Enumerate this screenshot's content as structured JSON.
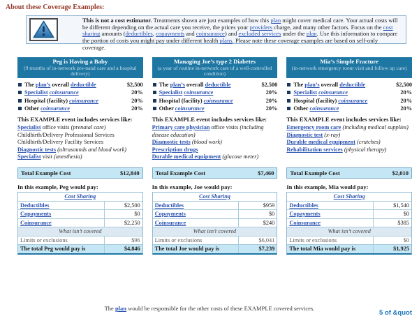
{
  "page_title": "About these Coverage Examples:",
  "colors": {
    "header_blue": "#1E76A3",
    "light_blue_fill": "#C5E6F4",
    "link_blue": "#2A52B0",
    "heading_red": "#97392A"
  },
  "icons": {
    "warning": "warning-triangle-exclamation"
  },
  "disclaimer": {
    "segments": [
      {
        "text": "This is not a cost estimator. ",
        "bold": true
      },
      {
        "text": "Treatments shown are just examples of how this "
      },
      {
        "text": "plan",
        "link": true
      },
      {
        "text": " might cover medical care. Your actual costs will be different depending on the actual care you receive, the prices your "
      },
      {
        "text": "providers",
        "link": true
      },
      {
        "text": " charge, and many other factors. Focus on the "
      },
      {
        "text": "cost sharing",
        "link": true
      },
      {
        "text": " amounts ("
      },
      {
        "text": "deductibles",
        "link": true
      },
      {
        "text": ", "
      },
      {
        "text": "copayments",
        "link": true
      },
      {
        "text": " and "
      },
      {
        "text": "coinsurance",
        "link": true
      },
      {
        "text": ") and "
      },
      {
        "text": "excluded services",
        "link": true
      },
      {
        "text": " under the "
      },
      {
        "text": "plan",
        "link": true
      },
      {
        "text": ". Use this information to compare the portion of costs you might pay under different health "
      },
      {
        "text": "plans",
        "link": true
      },
      {
        "text": ". Please note these coverage examples are based on self-only coverage."
      }
    ]
  },
  "examples": [
    {
      "title": "Peg is Having a Baby",
      "subtitle": "(9 months of in-network pre-natal care and a hospital delivery)",
      "plan_details": [
        {
          "segments": [
            {
              "text": "The "
            },
            {
              "text": "plan’s",
              "link": true
            },
            {
              "text": " overall "
            },
            {
              "text": "deductible",
              "link": true
            }
          ],
          "value": "$2,500"
        },
        {
          "segments": [
            {
              "text": "Specialist",
              "link": true
            },
            {
              "text": " "
            },
            {
              "text": "coinsurance",
              "link": true,
              "italic": true
            }
          ],
          "value": "20%"
        },
        {
          "segments": [
            {
              "text": "Hospital (facility) "
            },
            {
              "text": "coinsurance",
              "link": true,
              "italic": true
            }
          ],
          "value": "20%"
        },
        {
          "segments": [
            {
              "text": "Other "
            },
            {
              "text": "coinsurance",
              "link": true,
              "italic": true
            }
          ],
          "value": "20%"
        }
      ],
      "includes_heading": "This EXAMPLE event includes services like:",
      "services": [
        [
          {
            "text": "Specialist",
            "link": true,
            "bold": true
          },
          {
            "text": " office visits "
          },
          {
            "text": "(prenatal care)",
            "italic": true
          }
        ],
        [
          {
            "text": "Childbirth/Delivery Professional Services"
          }
        ],
        [
          {
            "text": "Childbirth/Delivery Facility Services"
          }
        ],
        [
          {
            "text": "Diagnostic tests",
            "link": true,
            "bold": true
          },
          {
            "text": " "
          },
          {
            "text": "(ultrasounds and blood work)",
            "italic": true
          }
        ],
        [
          {
            "text": "Specialist",
            "link": true,
            "bold": true
          },
          {
            "text": " visit "
          },
          {
            "text": "(anesthesia)",
            "italic": true
          }
        ]
      ],
      "total_cost": {
        "label": "Total Example Cost",
        "value": "$12,840"
      },
      "payment": {
        "intro": "In this example, Peg would pay:",
        "cost_sharing_header": "Cost Sharing",
        "rows": [
          {
            "label": "Deductibles",
            "value": "$2,500"
          },
          {
            "label": "Copayments",
            "value": "$0"
          },
          {
            "label": "Coinsurance",
            "value": "$2,250"
          }
        ],
        "not_covered_header": "What isn’t covered",
        "limits_row": {
          "label": "Limits or exclusions",
          "value": "$96"
        },
        "total_row": {
          "label": "The total Peg would pay is",
          "value": "$4,846"
        }
      }
    },
    {
      "title": "Managing Joe’s type 2 Diabetes",
      "subtitle": "(a year of routine in-network care of a well-controlled condition)",
      "plan_details": [
        {
          "segments": [
            {
              "text": "The "
            },
            {
              "text": "plan’s",
              "link": true
            },
            {
              "text": " overall "
            },
            {
              "text": "deductible",
              "link": true
            }
          ],
          "value": "$2,500"
        },
        {
          "segments": [
            {
              "text": "Specialist",
              "link": true
            },
            {
              "text": " "
            },
            {
              "text": "coinsurance",
              "link": true,
              "italic": true
            }
          ],
          "value": "20%"
        },
        {
          "segments": [
            {
              "text": "Hospital (facility) "
            },
            {
              "text": "coinsurance",
              "link": true,
              "italic": true
            }
          ],
          "value": "20%"
        },
        {
          "segments": [
            {
              "text": "Other "
            },
            {
              "text": "coinsurance",
              "link": true,
              "italic": true
            }
          ],
          "value": "20%"
        }
      ],
      "includes_heading": "This EXAMPLE event includes services like:",
      "services": [
        [
          {
            "text": "Primary care physician",
            "link": true,
            "bold": true
          },
          {
            "text": " office visits "
          },
          {
            "text": "(including disease education)",
            "italic": true
          }
        ],
        [
          {
            "text": "Diagnostic tests",
            "link": true,
            "bold": true
          },
          {
            "text": " "
          },
          {
            "text": "(blood work)",
            "italic": true
          }
        ],
        [
          {
            "text": "Prescription drugs",
            "link": true,
            "bold": true
          }
        ],
        [
          {
            "text": "Durable medical equipment",
            "link": true,
            "bold": true
          },
          {
            "text": " "
          },
          {
            "text": "(glucose meter)",
            "italic": true
          }
        ]
      ],
      "total_cost": {
        "label": "Total Example Cost",
        "value": "$7,460"
      },
      "payment": {
        "intro": "In this example, Joe would pay:",
        "cost_sharing_header": "Cost Sharing",
        "rows": [
          {
            "label": "Deductibles",
            "value": "$959"
          },
          {
            "label": "Copayments",
            "value": "$0"
          },
          {
            "label": "Coinsurance",
            "value": "$240"
          }
        ],
        "not_covered_header": "What isn’t covered",
        "limits_row": {
          "label": "Limits or exclusions",
          "value": "$6,041"
        },
        "total_row": {
          "label": "The total Joe would pay is",
          "value": "$7,239"
        }
      }
    },
    {
      "title": "Mia’s Simple Fracture",
      "subtitle": "(in-network emergency room visit and follow up care)",
      "plan_details": [
        {
          "segments": [
            {
              "text": "The "
            },
            {
              "text": "plan’s",
              "link": true
            },
            {
              "text": " overall "
            },
            {
              "text": "deductible",
              "link": true
            }
          ],
          "value": "$2,500"
        },
        {
          "segments": [
            {
              "text": "Specialist",
              "link": true
            },
            {
              "text": " "
            },
            {
              "text": "coinsurance",
              "link": true,
              "italic": true
            }
          ],
          "value": "20%"
        },
        {
          "segments": [
            {
              "text": "Hospital (facility) "
            },
            {
              "text": "coinsurance",
              "link": true,
              "italic": true
            }
          ],
          "value": "20%"
        },
        {
          "segments": [
            {
              "text": "Other "
            },
            {
              "text": "coinsurance",
              "link": true,
              "italic": true
            }
          ],
          "value": "20%"
        }
      ],
      "includes_heading": "This EXAMPLE event includes services like:",
      "services": [
        [
          {
            "text": "Emergency room care",
            "link": true,
            "bold": true
          },
          {
            "text": " "
          },
          {
            "text": "(including medical supplies)",
            "italic": true
          }
        ],
        [
          {
            "text": "Diagnostic test",
            "link": true,
            "bold": true
          },
          {
            "text": " "
          },
          {
            "text": "(x-ray)",
            "italic": true
          }
        ],
        [
          {
            "text": "Durable medical equipment",
            "link": true,
            "bold": true
          },
          {
            "text": " "
          },
          {
            "text": "(crutches)",
            "italic": true
          }
        ],
        [
          {
            "text": "Rehabilitation services",
            "link": true,
            "bold": true
          },
          {
            "text": " "
          },
          {
            "text": "(physical therapy)",
            "italic": true
          }
        ]
      ],
      "total_cost": {
        "label": "Total Example Cost",
        "value": "$2,010"
      },
      "payment": {
        "intro": "In this example, Mia would pay:",
        "cost_sharing_header": "Cost Sharing",
        "rows": [
          {
            "label": "Deductibles",
            "value": "$1,540"
          },
          {
            "label": "Copayments",
            "value": "$0"
          },
          {
            "label": "Coinsurance",
            "value": "$385"
          }
        ],
        "not_covered_header": "What isn’t covered",
        "limits_row": {
          "label": "Limits or exclusions",
          "value": "$0"
        },
        "total_row": {
          "label": "The total Mia would pay is",
          "value": "$1,925"
        }
      }
    }
  ],
  "footer": {
    "segments": [
      {
        "text": "The "
      },
      {
        "text": "plan",
        "link": true,
        "bold": true
      },
      {
        "text": " would be responsible for the other costs of these EXAMPLE covered services."
      }
    ]
  },
  "page_number": "5 of &quot"
}
